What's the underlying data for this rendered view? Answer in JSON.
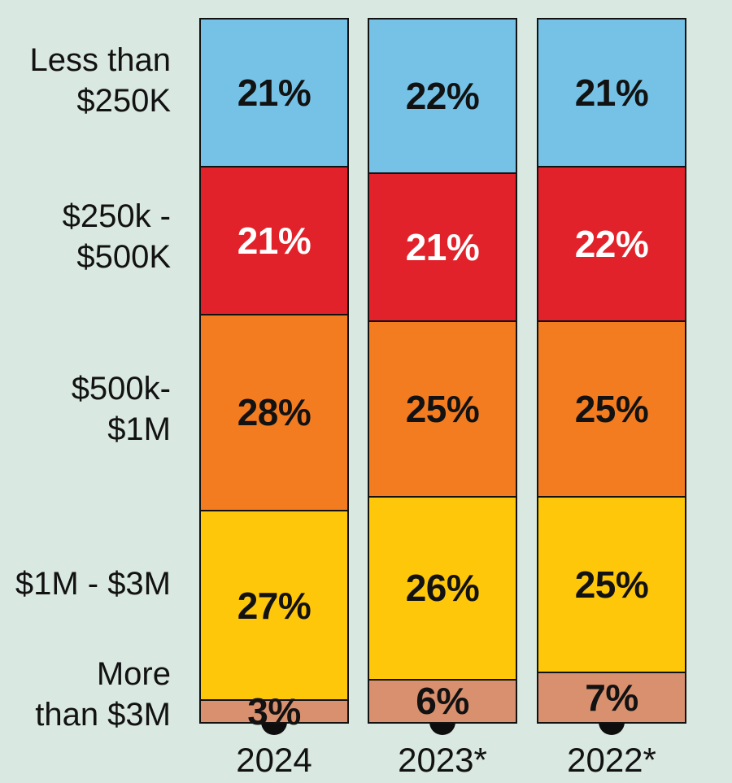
{
  "colors": {
    "background": "#d9e8e0",
    "ink": "#121212",
    "border": "#121212",
    "dot": "#0d0d0d"
  },
  "chart_data": {
    "type": "bar",
    "stacked": true,
    "orientation": "vertical",
    "unit": "%",
    "value_suffix": "%",
    "ylim": [
      0,
      100
    ],
    "legend_position": "left-row-labels",
    "grid": false,
    "categories": [
      "2024",
      "2023*",
      "2022*"
    ],
    "row_labels": [
      {
        "name": "less-than-250k",
        "lines": [
          "Less than",
          "$250K"
        ]
      },
      {
        "name": "250k-500k",
        "lines": [
          "$250k -",
          "$500K"
        ]
      },
      {
        "name": "500k-1m",
        "lines": [
          "$500k-",
          "$1M"
        ]
      },
      {
        "name": "1m-3m",
        "lines": [
          "$1M - $3M"
        ]
      },
      {
        "name": "more-than-3m",
        "lines": [
          "More",
          "than $3M"
        ]
      }
    ],
    "series": [
      {
        "name": "Less than $250K",
        "color": "#75c2e6",
        "label_color": "#121212",
        "values": [
          21,
          22,
          21
        ]
      },
      {
        "name": "$250k - $500K",
        "color": "#e2222a",
        "label_color": "#ffffff",
        "values": [
          21,
          21,
          22
        ]
      },
      {
        "name": "$500k- $1M",
        "color": "#f47c20",
        "label_color": "#121212",
        "values": [
          28,
          25,
          25
        ]
      },
      {
        "name": "$1M - $3M",
        "color": "#ffc70a",
        "label_color": "#121212",
        "values": [
          27,
          26,
          25
        ]
      },
      {
        "name": "More than $3M",
        "color": "#d9906f",
        "label_color": "#121212",
        "values": [
          3,
          6,
          7
        ]
      }
    ]
  },
  "layout_note": "stacked bar chart of annual revenue distribution, percent labels inside segments, years beneath bars"
}
